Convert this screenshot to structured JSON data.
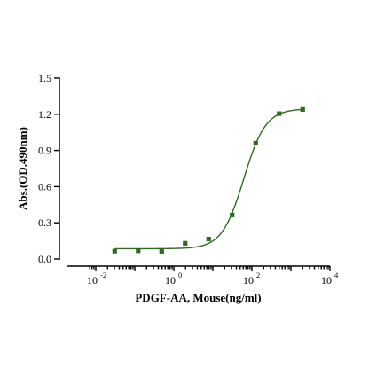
{
  "chart_data": {
    "type": "scatter",
    "title": "",
    "xlabel": "PDGF-AA, Mouse(ng/ml)",
    "ylabel": "Abs.(OD.490nm)",
    "x_scale": "log",
    "xlim": [
      0.01,
      10000
    ],
    "ylim": [
      0,
      1.5
    ],
    "x_ticks": [
      {
        "value": 0.01,
        "base": "10",
        "exp": "-2"
      },
      {
        "value": 1,
        "base": "10",
        "exp": "0"
      },
      {
        "value": 100,
        "base": "10",
        "exp": "2"
      },
      {
        "value": 10000,
        "base": "10",
        "exp": "4"
      }
    ],
    "y_ticks": [
      "0.0",
      "0.3",
      "0.6",
      "0.9",
      "1.2",
      "1.5"
    ],
    "grid": false,
    "series": [
      {
        "x": [
          0.0305,
          0.122,
          0.488,
          1.95,
          7.81,
          31.25,
          125,
          500,
          2000
        ],
        "y": [
          0.065,
          0.068,
          0.063,
          0.13,
          0.165,
          0.365,
          0.96,
          1.205,
          1.24
        ],
        "marker": "square",
        "fit": "4PL",
        "color": "#2e6b1f"
      }
    ]
  }
}
